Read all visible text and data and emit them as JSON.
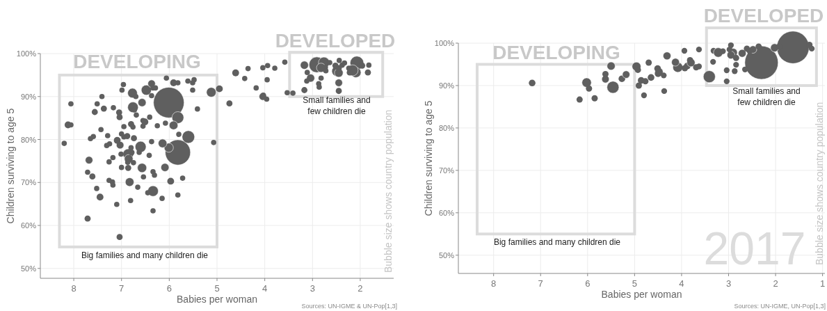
{
  "chart_data": [
    {
      "type": "bubble",
      "xlabel": "Babies per woman",
      "ylabel": "Children surviving to age 5",
      "grid": true,
      "xlim": [
        8.7,
        1.3
      ],
      "xticks": [
        8,
        7,
        6,
        5,
        4,
        3,
        2
      ],
      "ylim": [
        47.7,
        100
      ],
      "yticks": [
        {
          "value": 50,
          "label": "50%"
        },
        {
          "value": 60,
          "label": "60%"
        },
        {
          "value": 70,
          "label": "70%"
        },
        {
          "value": 80,
          "label": "80%"
        },
        {
          "value": 90,
          "label": "90%"
        },
        {
          "value": 100,
          "label": "100%"
        }
      ],
      "annotations": [
        "DEVELOPING",
        "DEVELOPED",
        "Big families and many children die",
        "Small families and few children die",
        "Bubble size shows country population",
        "Sources: UN-IGME & UN-Pop[1,3]"
      ],
      "series": [
        {
          "color": "#5f5f5f",
          "x": [
            6.01,
            5.82,
            5.6,
            5.82,
            6.48,
            6.76,
            6.77,
            5.12,
            4.95,
            4.61,
            4.74,
            6.6,
            6.34,
            6.01,
            6.14,
            6.09,
            6.57,
            6.83,
            6.86,
            6.85,
            5.91,
            6.57,
            6.37,
            5.91,
            6.06,
            8.12,
            8.06,
            8.06,
            8.2,
            7.71,
            7.68,
            7.71,
            7.61,
            7.52,
            7.45,
            7.1,
            7.04,
            6.81,
            6.34,
            6.15,
            6.45,
            5.82,
            5.72,
            5.97,
            6.54,
            6.31,
            6.34,
            6.86,
            7.0,
            6.75,
            7.26,
            7.18,
            7.01,
            6.79,
            7.03,
            7.09,
            7.31,
            7.25,
            7.29,
            7.59,
            7.65,
            7.43,
            7.56,
            7.37,
            7.51,
            7.41,
            7.17,
            7.05,
            7.04,
            6.95,
            6.8,
            6.76,
            6.88,
            6.74,
            6.95,
            7.0,
            6.55,
            6.51,
            6.55,
            6.25,
            6.08,
            6.41,
            6.69,
            6.73,
            6.96,
            6.99,
            6.7,
            6.37,
            6.34,
            6.29,
            5.82,
            5.61,
            5.48,
            5.51,
            5.51,
            5.41,
            5.8,
            5.07,
            6.63,
            6.87,
            7.19,
            7.26,
            7.18,
            6.66,
            6.8,
            6.37,
            6.42,
            2.91,
            3.17,
            2.76,
            2.82,
            3.04,
            3.17,
            3.12,
            2.87,
            2.86,
            2.82,
            3.11,
            2.45,
            2.45,
            2.49,
            2.45,
            2.52,
            2.45,
            2.44,
            2.64,
            2.73,
            2.72,
            2.38,
            2.33,
            2.07,
            2.09,
            2.16,
            2.22,
            1.84,
            1.82,
            1.96,
            2.24,
            3.53,
            3.41,
            4.04,
            4.03,
            3.96,
            3.95,
            3.58,
            3.79,
            3.94,
            4.04,
            4.35,
            4.42,
            4.18
          ],
          "values": [
            88.6,
            77.0,
            80.6,
            85.1,
            91.5,
            87.5,
            90.8,
            91.0,
            91.8,
            95.5,
            88.4,
            78.3,
            68.0,
            78.1,
            79.1,
            73.5,
            73.4,
            70.1,
            76.6,
            75.5,
            83.3,
            88.6,
            93.0,
            93.2,
            94.3,
            83.4,
            83.4,
            88.3,
            79.1,
            61.6,
            75.2,
            72.4,
            71.4,
            68.6,
            66.6,
            64.9,
            57.3,
            65.8,
            63.4,
            66.3,
            67.6,
            67.1,
            71.0,
            70.3,
            71.3,
            71.7,
            72.5,
            73.4,
            73.5,
            74.6,
            74.8,
            75.8,
            76.6,
            77.0,
            78.7,
            79.8,
            78.6,
            79.0,
            80.9,
            80.7,
            80.2,
            82.3,
            86.4,
            87.2,
            88.3,
            90.0,
            87.4,
            86.3,
            85.2,
            83.0,
            83.6,
            82.9,
            80.8,
            80.3,
            80.6,
            81.3,
            84.4,
            84.1,
            83.1,
            83.2,
            83.8,
            85.2,
            85.7,
            86.9,
            92.8,
            91.5,
            90.0,
            90.2,
            92.0,
            92.0,
            93.2,
            93.6,
            93.9,
            93.2,
            91.5,
            87.1,
            81.2,
            79.3,
            77.0,
            74.7,
            70.1,
            70.5,
            69.4,
            68.9,
            78.1,
            79.5,
            76.3,
            97.4,
            97.3,
            97.9,
            96.7,
            94.3,
            91.5,
            93.6,
            93.0,
            92.2,
            94.3,
            95.6,
            93.2,
            91.3,
            95.9,
            95.5,
            97.2,
            96.6,
            98.4,
            97.9,
            96.8,
            96.0,
            97.3,
            97.8,
            97.8,
            95.6,
            96.1,
            95.6,
            95.6,
            97.3,
            97.2,
            96.6,
            90.9,
            90.8,
            90.0,
            90.3,
            89.4,
            93.9,
            98.0,
            96.6,
            97.2,
            96.7,
            96.5,
            94.2,
            92.0
          ],
          "sizes": [
            1,
            0.68,
            0.17,
            0.15,
            0.11,
            0.12,
            0.1,
            0.1,
            0.05,
            0.05,
            0.04,
            0.13,
            0.12,
            0.09,
            0.08,
            0.07,
            0.09,
            0.08,
            0.12,
            0.08,
            0.08,
            0.07,
            0.06,
            0.05,
            0.03,
            0.05,
            0.03,
            0.03,
            0.03,
            0.04,
            0.06,
            0.03,
            0.04,
            0.03,
            0.05,
            0.03,
            0.04,
            0.03,
            0.03,
            0.03,
            0.03,
            0.03,
            0.03,
            0.05,
            0.03,
            0.03,
            0.03,
            0.04,
            0.03,
            0.03,
            0.03,
            0.03,
            0.03,
            0.04,
            0.06,
            0.05,
            0.03,
            0.03,
            0.03,
            0.03,
            0.03,
            0.03,
            0.04,
            0.04,
            0.03,
            0.03,
            0.03,
            0.04,
            0.04,
            0.03,
            0.04,
            0.03,
            0.04,
            0.04,
            0.03,
            0.03,
            0.03,
            0.05,
            0.03,
            0.03,
            0.03,
            0.03,
            0.03,
            0.03,
            0.03,
            0.03,
            0.03,
            0.03,
            0.03,
            0.03,
            0.03,
            0.03,
            0.03,
            0.03,
            0.03,
            0.03,
            0.03,
            0.03,
            0.03,
            0.03,
            0.03,
            0.03,
            0.03,
            0.03,
            0.03,
            0.03,
            0.03,
            0.26,
            0.07,
            0.13,
            0.09,
            0.07,
            0.04,
            0.03,
            0.03,
            0.03,
            0.03,
            0.03,
            0.06,
            0.04,
            0.11,
            0.08,
            0.04,
            0.04,
            0.03,
            0.03,
            0.03,
            0.03,
            0.03,
            0.03,
            0.2,
            0.11,
            0.13,
            0.04,
            0.04,
            0.03,
            0.04,
            0.03,
            0.03,
            0.03,
            0.06,
            0.03,
            0.03,
            0.03,
            0.03,
            0.03,
            0.03,
            0.03,
            0.03,
            0.03,
            0.03
          ]
        }
      ]
    },
    {
      "type": "bubble",
      "xlabel": "Babies per woman",
      "ylabel": "Children surviving to age 5",
      "grid": true,
      "xlim": [
        8.75,
        0.95
      ],
      "xticks": [
        8,
        7,
        6,
        5,
        4,
        3,
        2,
        1
      ],
      "ylim": [
        45.7,
        100
      ],
      "yticks": [
        {
          "value": 50,
          "label": "50%"
        },
        {
          "value": 60,
          "label": "60%"
        },
        {
          "value": 70,
          "label": "70%"
        },
        {
          "value": 80,
          "label": "80%"
        },
        {
          "value": 90,
          "label": "90%"
        },
        {
          "value": 100,
          "label": "100%"
        }
      ],
      "annotations": [
        "DEVELOPING",
        "DEVELOPED",
        "Big families and many children die",
        "Small families and few children die",
        "Bubble size shows country population",
        "Sources: UN-IGME, UN-Pop[1,3]",
        "2017"
      ],
      "series": [
        {
          "color": "#5f5f5f",
          "x": [
            2.3,
            1.63,
            3.41,
            5.46,
            6.02,
            7.18,
            6.17,
            5.85,
            5.97,
            5.62,
            5.62,
            5.5,
            5.27,
            5.18,
            4.96,
            4.93,
            4.91,
            4.8,
            4.86,
            4.77,
            4.7,
            4.65,
            4.48,
            4.5,
            4.51,
            4.37,
            4.38,
            4.31,
            4.08,
            4.13,
            3.93,
            3.88,
            3.8,
            3.82,
            3.69,
            3.63,
            3.94,
            3.63,
            3.32,
            3.22,
            3.33,
            3.04,
            3.04,
            2.95,
            2.9,
            2.95,
            2.84,
            2.84,
            2.87,
            2.71,
            2.61,
            2.65,
            2.48,
            2.02,
            1.28,
            1.23,
            2.36,
            2.55,
            1.92,
            2.98,
            3.12
          ],
          "values": [
            95.4,
            99.0,
            92.1,
            89.6,
            90.7,
            90.6,
            86.7,
            87.0,
            89.3,
            91.5,
            92.7,
            94.6,
            91.6,
            92.6,
            94.5,
            93.7,
            90.0,
            87.7,
            91.2,
            91.0,
            95.4,
            91.9,
            93.2,
            92.8,
            94.0,
            88.7,
            92.4,
            97.0,
            94.3,
            95.5,
            94.1,
            94.6,
            95.4,
            96.0,
            94.3,
            94.5,
            98.2,
            98.5,
            98.2,
            97.8,
            95.6,
            91.0,
            93.6,
            99.5,
            97.8,
            97.2,
            96.5,
            94.9,
            93.4,
            97.6,
            98.7,
            93.8,
            98.5,
            98.9,
            99.6,
            98.7,
            99.2,
            98.2,
            99.2,
            98.5,
            98.1
          ],
          "sizes": [
            1,
            0.94,
            0.13,
            0.13,
            0.08,
            0.04,
            0.035,
            0.035,
            0.035,
            0.05,
            0.035,
            0.06,
            0.04,
            0.05,
            0.07,
            0.035,
            0.035,
            0.03,
            0.04,
            0.035,
            0.035,
            0.04,
            0.06,
            0.04,
            0.04,
            0.03,
            0.03,
            0.055,
            0.09,
            0.055,
            0.035,
            0.04,
            0.06,
            0.035,
            0.035,
            0.03,
            0.03,
            0.03,
            0.03,
            0.08,
            0.03,
            0.03,
            0.03,
            0.03,
            0.06,
            0.055,
            0.035,
            0.03,
            0.03,
            0.055,
            0.035,
            0.03,
            0.05,
            0.06,
            0.035,
            0.03,
            0.035,
            0.035,
            0.035,
            0.03,
            0.03
          ]
        }
      ]
    }
  ]
}
